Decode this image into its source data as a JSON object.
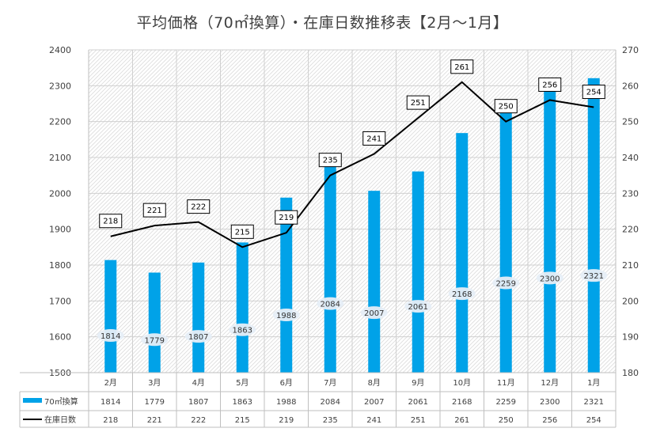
{
  "chart_data": {
    "type": "bar+line",
    "title": "平均価格（70㎡換算）・在庫日数推移表【2月～1月】",
    "categories": [
      "2月",
      "3月",
      "4月",
      "5月",
      "6月",
      "7月",
      "8月",
      "9月",
      "10月",
      "11月",
      "12月",
      "1月"
    ],
    "series": [
      {
        "name": "70㎡換算",
        "type": "bar",
        "axis": "left",
        "color": "#00A2E8",
        "values": [
          1814,
          1779,
          1807,
          1863,
          1988,
          2084,
          2007,
          2061,
          2168,
          2259,
          2300,
          2321
        ]
      },
      {
        "name": "在庫日数",
        "type": "line",
        "axis": "right",
        "color": "#000000",
        "values": [
          218,
          221,
          222,
          215,
          219,
          235,
          241,
          251,
          261,
          250,
          256,
          254
        ]
      }
    ],
    "y_left": {
      "min": 1500,
      "max": 2400,
      "step": 100
    },
    "y_right": {
      "min": 180,
      "max": 270,
      "step": 10
    },
    "grid": true,
    "data_table": true
  }
}
